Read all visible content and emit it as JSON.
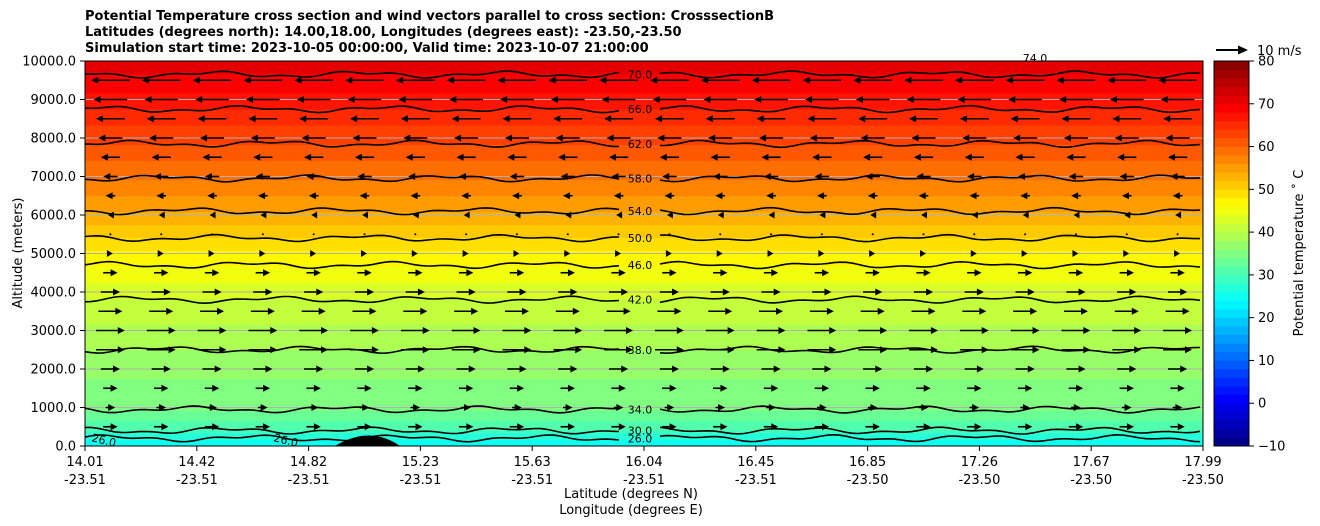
{
  "chart_data": {
    "type": "contour",
    "title_lines": [
      "Potential Temperature cross section and wind vectors parallel to cross section: CrosssectionB",
      "Latitudes (degrees north): 14.00,18.00, Longitudes (degrees east): -23.50,-23.50",
      "Simulation start time: 2023-10-05 00:00:00, Valid time: 2023-10-07 21:00:00"
    ],
    "xlabel": "Latitude (degrees N)",
    "xlabel2": "Longitude (degrees E)",
    "ylabel": "Altitude (meters)",
    "ylim": [
      0,
      10000
    ],
    "y_ticks": [
      "0.0",
      "1000.0",
      "2000.0",
      "3000.0",
      "4000.0",
      "5000.0",
      "6000.0",
      "7000.0",
      "8000.0",
      "9000.0",
      "10000.0"
    ],
    "y_tick_values": [
      0,
      1000,
      2000,
      3000,
      4000,
      5000,
      6000,
      7000,
      8000,
      9000,
      10000
    ],
    "x_ticks": [
      {
        "lat": "14.01",
        "lon": "-23.51"
      },
      {
        "lat": "14.42",
        "lon": "-23.51"
      },
      {
        "lat": "14.82",
        "lon": "-23.51"
      },
      {
        "lat": "15.23",
        "lon": "-23.51"
      },
      {
        "lat": "15.63",
        "lon": "-23.51"
      },
      {
        "lat": "16.04",
        "lon": "-23.51"
      },
      {
        "lat": "16.45",
        "lon": "-23.51"
      },
      {
        "lat": "16.85",
        "lon": "-23.50"
      },
      {
        "lat": "17.26",
        "lon": "-23.50"
      },
      {
        "lat": "17.67",
        "lon": "-23.50"
      },
      {
        "lat": "17.99",
        "lon": "-23.50"
      }
    ],
    "colorbar": {
      "label": "Potential temperature $^\\circ$C",
      "label_display": "Potential temperature ˚ C",
      "range": [
        -10,
        80
      ],
      "ticks": [
        "80",
        "70",
        "60",
        "50",
        "40",
        "30",
        "20",
        "10",
        "0",
        "−10"
      ],
      "tick_values": [
        80,
        70,
        60,
        50,
        40,
        30,
        20,
        10,
        0,
        -10
      ],
      "colormap": "jet"
    },
    "wind_key_label": "10 m/s",
    "contours": [
      {
        "value": 26,
        "label": "26.0",
        "altitude": 200
      },
      {
        "value": 30,
        "label": "30.0",
        "altitude": 400
      },
      {
        "value": 34,
        "label": "34.0",
        "altitude": 950
      },
      {
        "value": 38,
        "label": "38.0",
        "altitude": 2500
      },
      {
        "value": 42,
        "label": "42.0",
        "altitude": 3800
      },
      {
        "value": 46,
        "label": "46.0",
        "altitude": 4700
      },
      {
        "value": 50,
        "label": "50.0",
        "altitude": 5400
      },
      {
        "value": 54,
        "label": "54.0",
        "altitude": 6100
      },
      {
        "value": 58,
        "label": "58.0",
        "altitude": 6950
      },
      {
        "value": 62,
        "label": "62.0",
        "altitude": 7850
      },
      {
        "value": 66,
        "label": "66.0",
        "altitude": 8750
      },
      {
        "value": 70,
        "label": "70.0",
        "altitude": 9650
      }
    ],
    "extra_contour_labels": [
      "26.0",
      "26.0",
      "74.0"
    ],
    "wind_levels": [
      {
        "altitude": 500,
        "u": 3
      },
      {
        "altitude": 1000,
        "u": 2
      },
      {
        "altitude": 1500,
        "u": 3
      },
      {
        "altitude": 2000,
        "u": 4
      },
      {
        "altitude": 2500,
        "u": 6
      },
      {
        "altitude": 3000,
        "u": 6
      },
      {
        "altitude": 3500,
        "u": 5
      },
      {
        "altitude": 4000,
        "u": 4
      },
      {
        "altitude": 4500,
        "u": 3
      },
      {
        "altitude": 5000,
        "u": 1
      },
      {
        "altitude": 5500,
        "u": 0
      },
      {
        "altitude": 6000,
        "u": -1
      },
      {
        "altitude": 6500,
        "u": -2
      },
      {
        "altitude": 7000,
        "u": -3
      },
      {
        "altitude": 7500,
        "u": -4
      },
      {
        "altitude": 8000,
        "u": -5
      },
      {
        "altitude": 8500,
        "u": -6
      },
      {
        "altitude": 9000,
        "u": -7
      },
      {
        "altitude": 9500,
        "u": -8
      }
    ],
    "grid": "horizontal"
  }
}
